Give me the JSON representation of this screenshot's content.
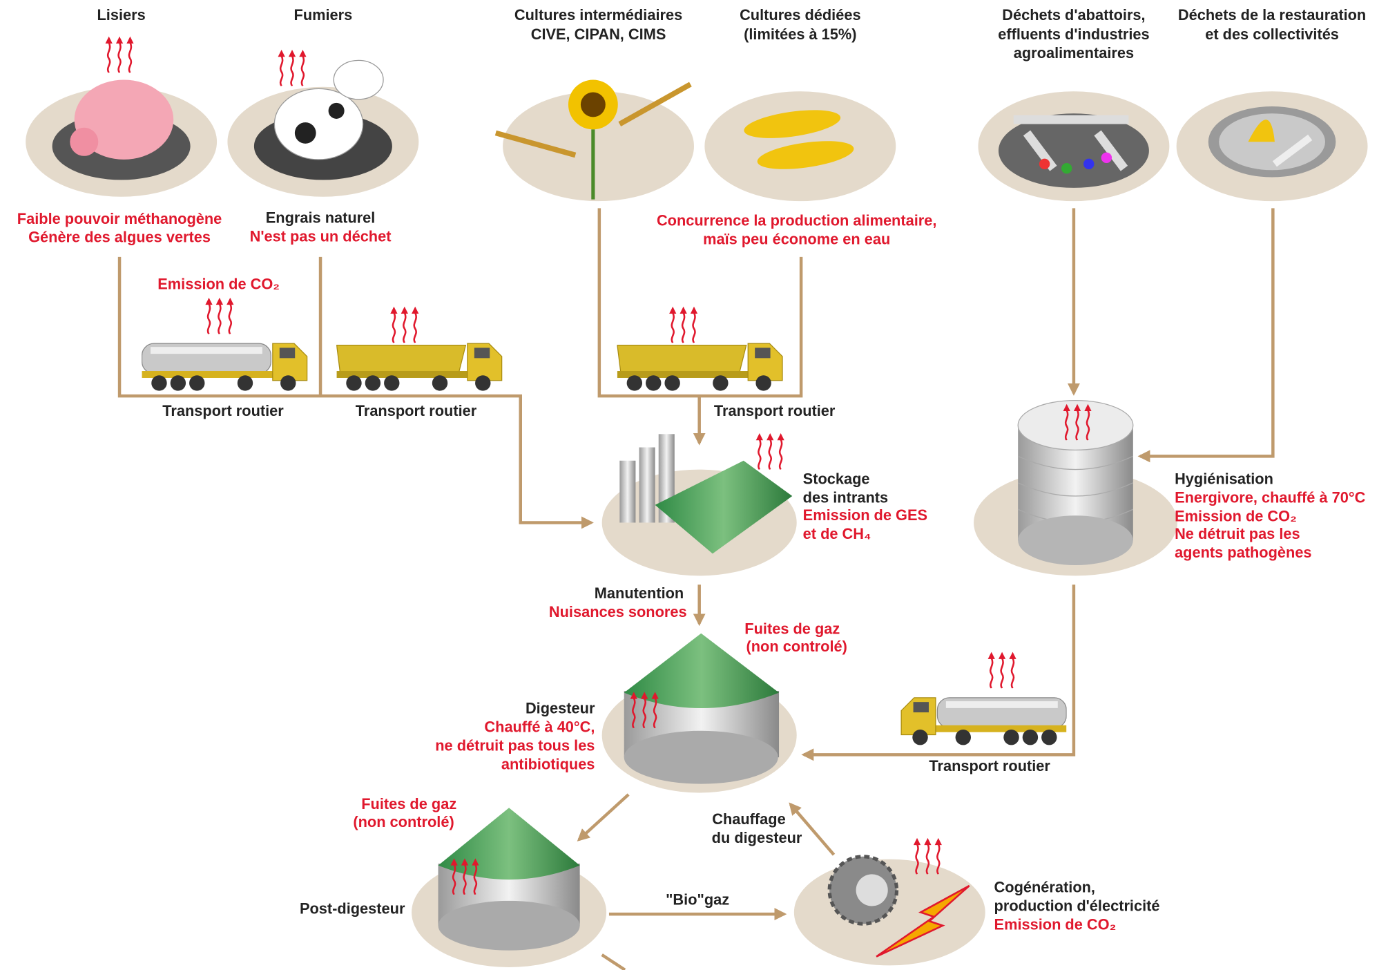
{
  "sources": {
    "lisiers": {
      "title": "Lisiers",
      "notes": [
        "Faible pouvoir méthanogène",
        "Génère des algues vertes"
      ]
    },
    "fumiers": {
      "title": "Fumiers",
      "note": "Engrais naturel",
      "warning": "N'est pas un déchet"
    },
    "cultures_intermediaires": {
      "title": [
        "Cultures intermédiaires",
        "CIVE, CIPAN, CIMS"
      ]
    },
    "cultures_dediees": {
      "title": [
        "Cultures dédiées",
        "(limitées à 15%)"
      ]
    },
    "cultures_notes": [
      "Concurrence la production alimentaire,",
      "maïs peu économe en eau"
    ],
    "dechets_abattoirs": {
      "title": [
        "Déchets d'abattoirs,",
        "effluents d'industries",
        "agroalimentaires"
      ]
    },
    "dechets_restauration": {
      "title": [
        "Déchets de la restauration",
        "et des collectivités"
      ]
    }
  },
  "transport": {
    "emission": "Emission de CO₂",
    "labels": [
      "Transport routier",
      "Transport routier",
      "Transport routier",
      "Transport routier"
    ]
  },
  "stockage": {
    "title": [
      "Stockage",
      "des intrants"
    ],
    "notes": [
      "Emission de GES",
      "et de CH₄"
    ]
  },
  "hygienisation": {
    "title": "Hygiénisation",
    "notes": [
      "Energivore, chauffé à 70°C",
      "Emission de CO₂",
      "Ne détruit pas les",
      "agents pathogènes"
    ]
  },
  "manutention": {
    "title": "Manutention",
    "note": "Nuisances sonores"
  },
  "digesteur": {
    "title": "Digesteur",
    "notes": [
      "Chauffé à 40°C,",
      "ne détruit pas tous les",
      "antibiotiques"
    ],
    "leak": [
      "Fuites de gaz",
      "(non controlé)"
    ]
  },
  "post_digesteur": {
    "title": "Post-digesteur",
    "leak": [
      "Fuites de gaz",
      "(non controlé)"
    ]
  },
  "chauffage": [
    "Chauffage",
    "du digesteur"
  ],
  "biogaz": "\"Bio\"gaz",
  "cogeneration": {
    "title": [
      "Cogénération,",
      "production d'électricité"
    ],
    "note": "Emission de CO₂"
  }
}
